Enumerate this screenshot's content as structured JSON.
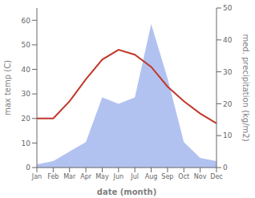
{
  "chart_data": {
    "type": "line",
    "categories": [
      "Jan",
      "Feb",
      "Mar",
      "Apr",
      "May",
      "Jun",
      "Jul",
      "Aug",
      "Sep",
      "Oct",
      "Nov",
      "Dec"
    ],
    "xlabel": "date (month)",
    "ylabel": "max temp (C)",
    "y2label": "med. precipitation (kg/m2)",
    "ylim": [
      0,
      65
    ],
    "yticks": [
      0,
      10,
      20,
      30,
      40,
      50,
      60
    ],
    "y2lim": [
      0,
      50
    ],
    "y2ticks": [
      0,
      10,
      20,
      30,
      40,
      50
    ],
    "series": [
      {
        "type": "area",
        "axis": "y2",
        "color": "#aabbee",
        "values": [
          1,
          2,
          5,
          8,
          22,
          20,
          22,
          45,
          28,
          8,
          3,
          2
        ]
      },
      {
        "type": "line",
        "color": "#c0392b",
        "values": [
          20,
          20,
          27,
          36,
          44,
          48,
          46,
          41,
          33,
          27,
          22,
          18
        ]
      }
    ]
  }
}
